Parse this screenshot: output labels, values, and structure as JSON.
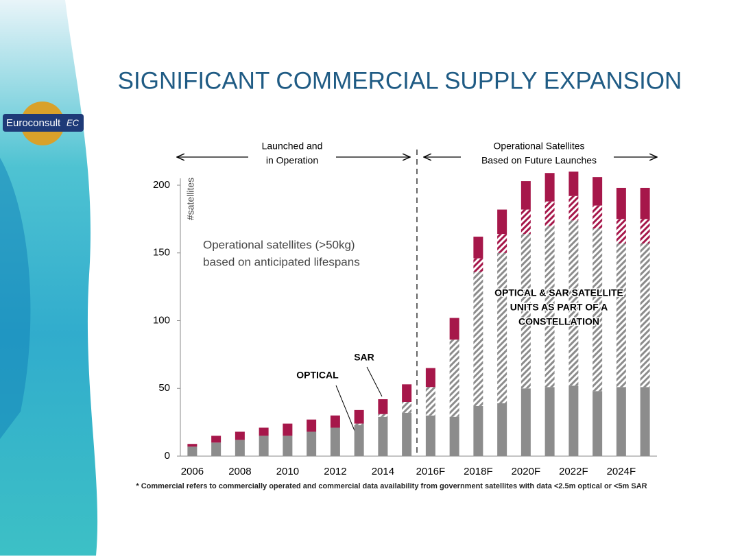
{
  "header": {
    "title": "SIGNIFICANT COMMERCIAL SUPPLY EXPANSION",
    "logo": "Euroconsult",
    "logo_mark": "EC"
  },
  "chart_data": {
    "type": "bar",
    "stacked": true,
    "categories": [
      "2006",
      null,
      "2008",
      null,
      "2010",
      null,
      "2012",
      null,
      "2014",
      null,
      "2016F",
      null,
      "2018F",
      null,
      "2020F",
      null,
      "2022F",
      null,
      "2024F",
      null
    ],
    "series": [
      {
        "name": "OPTICAL",
        "color": "#8c8c8c",
        "pattern": "solid",
        "values": [
          7,
          10,
          12,
          15,
          15,
          18,
          21,
          23,
          29,
          32,
          30,
          29,
          37,
          39,
          50,
          51,
          52,
          48,
          51,
          51
        ]
      },
      {
        "color": "#8c8c8c",
        "pattern": "hatch",
        "values": [
          0,
          0,
          0,
          0,
          0,
          0,
          0,
          1,
          2,
          8,
          21,
          57,
          99,
          111,
          114,
          119,
          122,
          120,
          106,
          106
        ]
      },
      {
        "color": "#a6174a",
        "pattern": "hatch",
        "values": [
          0,
          0,
          0,
          0,
          0,
          0,
          0,
          0,
          0,
          0,
          0,
          0,
          10,
          14,
          18,
          18,
          18,
          17,
          18,
          18
        ]
      },
      {
        "name": "SAR",
        "color": "#a6174a",
        "pattern": "solid",
        "values": [
          2,
          5,
          6,
          6,
          9,
          9,
          9,
          10,
          11,
          13,
          14,
          16,
          16,
          18,
          21,
          21,
          18,
          21,
          23,
          23
        ]
      }
    ],
    "ylim": [
      0,
      200
    ],
    "yticks": [
      0,
      50,
      100,
      150,
      200
    ],
    "y_label": "#satellites",
    "period_labels": [
      {
        "lines": [
          "Launched and",
          "in Operation"
        ]
      },
      {
        "lines": [
          "Operational Satellites",
          "Based on Future Launches"
        ]
      }
    ],
    "annotations": [
      {
        "lines": [
          "Operational satellites (>50kg)",
          "based on anticipated lifespans"
        ]
      },
      {
        "lines": [
          "OPTICAL & SAR SATELLITE",
          "UNITS AS PART OF A",
          "CONSTELLATION"
        ]
      }
    ],
    "footnote": "* Commercial refers to commercially operated and commercial data availability from government satellites with data <2.5m optical or <5m SAR"
  }
}
